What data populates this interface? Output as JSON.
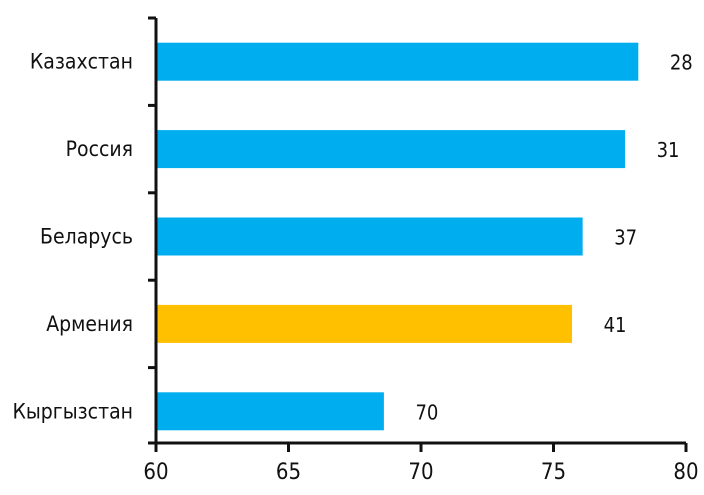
{
  "chart_data": {
    "type": "bar",
    "orientation": "horizontal",
    "categories": [
      "Казахстан",
      "Россия",
      "Беларусь",
      "Армения",
      "Кыргызстан"
    ],
    "values": [
      78.2,
      77.7,
      76.1,
      75.7,
      68.6
    ],
    "data_labels": [
      "28",
      "31",
      "37",
      "41",
      "70"
    ],
    "highlight_index": 3,
    "colors": {
      "default": "#00AEEF",
      "highlight": "#FFC000",
      "axis": "#111111"
    },
    "xlim": [
      60,
      80
    ],
    "xticks": [
      "60",
      "65",
      "70",
      "75",
      "80"
    ],
    "title": "",
    "xlabel": "",
    "ylabel": "",
    "grid": false,
    "legend": "none"
  }
}
